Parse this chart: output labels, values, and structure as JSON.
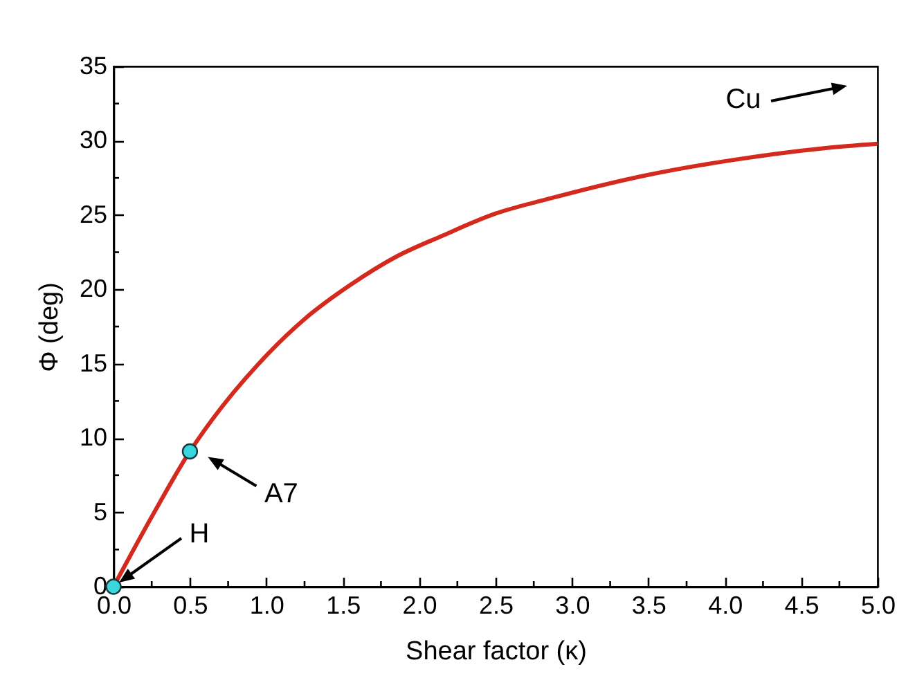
{
  "chart_data": {
    "type": "line",
    "xlabel": "Shear factor (κ)",
    "ylabel": "Φ (deg)",
    "xlim": [
      0,
      5
    ],
    "ylim": [
      0,
      35
    ],
    "xticks": [
      {
        "value": 0,
        "label": "0.0"
      },
      {
        "value": 0.25,
        "label": null
      },
      {
        "value": 0.5,
        "label": "0.5"
      },
      {
        "value": 0.75,
        "label": null
      },
      {
        "value": 1,
        "label": "1.0"
      },
      {
        "value": 1.25,
        "label": null
      },
      {
        "value": 1.5,
        "label": "1.5"
      },
      {
        "value": 1.75,
        "label": null
      },
      {
        "value": 2,
        "label": "2.0"
      },
      {
        "value": 2.25,
        "label": null
      },
      {
        "value": 2.5,
        "label": "2.5"
      },
      {
        "value": 2.75,
        "label": null
      },
      {
        "value": 3,
        "label": "3.0"
      },
      {
        "value": 3.25,
        "label": null
      },
      {
        "value": 3.5,
        "label": "3.5"
      },
      {
        "value": 3.75,
        "label": null
      },
      {
        "value": 4,
        "label": "4.0"
      },
      {
        "value": 4.25,
        "label": null
      },
      {
        "value": 4.5,
        "label": "4.5"
      },
      {
        "value": 4.75,
        "label": null
      },
      {
        "value": 5,
        "label": "5.0"
      }
    ],
    "yticks": [
      0,
      {
        "value": 2.5,
        "label": null
      },
      5,
      {
        "value": 7.5,
        "label": null
      },
      10,
      {
        "value": 12.5,
        "label": null
      },
      15,
      {
        "value": 17.5,
        "label": null
      },
      20,
      {
        "value": 22.5,
        "label": null
      },
      25,
      {
        "value": 27.5,
        "label": null
      },
      30,
      {
        "value": 32.5,
        "label": null
      },
      35
    ],
    "grid": false,
    "line_style": "solid",
    "series": [
      {
        "color": "#d42a1e",
        "x": [
          0,
          0.25,
          0.5,
          0.65,
          0.95,
          1.25,
          1.55,
          1.85,
          2.15,
          2.5,
          2.85,
          3.45,
          4.05,
          4.65,
          5
        ],
        "values": [
          0,
          4.7,
          9.1,
          11.3,
          15.0,
          18.0,
          20.3,
          22.2,
          23.6,
          25.1,
          26.1,
          27.6,
          28.7,
          29.5,
          29.8
        ]
      },
      {
        "type": "scatter",
        "color": "#3ad6de",
        "marker": "circle",
        "x": [
          0,
          0.5
        ],
        "values": [
          0,
          9.1
        ]
      }
    ],
    "annotations": [
      "H",
      {
        "text": "A7",
        "x": 0.5,
        "y": 9.1
      },
      "Cu"
    ]
  }
}
